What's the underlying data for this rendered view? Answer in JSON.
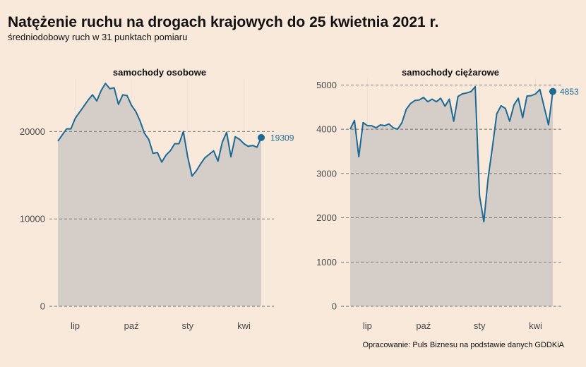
{
  "title": "Natężenie ruchu na drogach krajowych do 25 kwietnia 2021 r.",
  "subtitle": "średniodobowy ruch w 31 punktach pomiaru",
  "caption": "Opracowanie: Puls Biznesu na podstawie danych GDDKiA",
  "colors": {
    "background": "#f8e9da",
    "line": "#1b6a96",
    "area": "#d5cdc8",
    "grid_major": "#6e6e6e",
    "grid_minor": "#ece0d5"
  },
  "chart_data": [
    {
      "type": "area",
      "title": "samochody osobowe",
      "xlabel": "",
      "ylabel": "",
      "x_tick_labels": [
        "lip",
        "paź",
        "sty",
        "kwi"
      ],
      "x_tick_positions": [
        4,
        17,
        30,
        43
      ],
      "y_ticks": [
        0,
        10000,
        20000
      ],
      "ylim": [
        0,
        26000
      ],
      "x_range": [
        0,
        47
      ],
      "grid": true,
      "series": [
        {
          "values": [
            18900,
            19600,
            20300,
            20300,
            21500,
            22200,
            22900,
            23600,
            24200,
            23500,
            24700,
            25500,
            24900,
            25000,
            23100,
            24200,
            24100,
            23000,
            22300,
            21200,
            19800,
            19100,
            17500,
            17600,
            16500,
            17300,
            17800,
            18600,
            18600,
            20000,
            17100,
            14900,
            15500,
            16300,
            17000,
            17400,
            17800,
            16600,
            18800,
            19900,
            17100,
            19400,
            19100,
            18600,
            18300,
            18400,
            18200,
            19309
          ]
        }
      ],
      "end_label": "19309"
    },
    {
      "type": "area",
      "title": "samochody ciężarowe",
      "xlabel": "",
      "ylabel": "",
      "x_tick_labels": [
        "lip",
        "paź",
        "sty",
        "kwi"
      ],
      "x_tick_positions": [
        4,
        17,
        30,
        43
      ],
      "y_ticks": [
        0,
        1000,
        2000,
        3000,
        4000,
        5000
      ],
      "ylim": [
        0,
        5150
      ],
      "x_range": [
        0,
        47
      ],
      "grid": true,
      "series": [
        {
          "values": [
            4000,
            4200,
            3380,
            4150,
            4080,
            4080,
            4030,
            4100,
            4080,
            4120,
            4030,
            4000,
            4150,
            4450,
            4580,
            4650,
            4660,
            4720,
            4620,
            4680,
            4620,
            4700,
            4520,
            4680,
            4180,
            4740,
            4800,
            4820,
            4850,
            4960,
            2500,
            1910,
            2900,
            3600,
            4350,
            4530,
            4470,
            4180,
            4550,
            4700,
            4260,
            4750,
            4760,
            4800,
            4900,
            4500,
            4100,
            4853
          ]
        }
      ],
      "end_label": "4853"
    }
  ]
}
